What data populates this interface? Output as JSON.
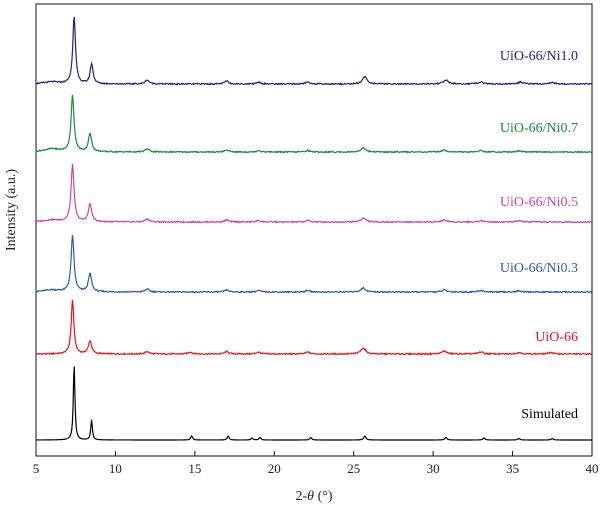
{
  "chart_data": {
    "type": "line",
    "xlabel_prefix": "2-",
    "xlabel_var": "θ",
    "xlabel_suffix": " (°)",
    "ylabel": "Intensity (a.u.)",
    "xlim": [
      5,
      40
    ],
    "xticks": [
      5,
      10,
      15,
      20,
      25,
      30,
      35,
      40
    ],
    "grid": false,
    "legend": "inline labels at right",
    "series": [
      {
        "name": "Simulated",
        "color": "#000000",
        "baseline": 0,
        "peaks": [
          [
            7.4,
            76,
            0.06
          ],
          [
            8.5,
            20,
            0.06
          ],
          [
            14.8,
            4,
            0.07
          ],
          [
            17.1,
            4,
            0.07
          ],
          [
            18.6,
            2,
            0.07
          ],
          [
            19.1,
            2.5,
            0.07
          ],
          [
            22.3,
            2.5,
            0.07
          ],
          [
            25.7,
            4,
            0.08
          ],
          [
            30.8,
            2.5,
            0.08
          ],
          [
            33.2,
            2,
            0.08
          ],
          [
            35.4,
            1.5,
            0.08
          ],
          [
            37.5,
            1.5,
            0.08
          ]
        ]
      },
      {
        "name": "UiO-66",
        "color": "#e8141c",
        "baseline": 86,
        "peaks": [
          [
            7.3,
            54,
            0.1
          ],
          [
            8.4,
            13,
            0.12
          ],
          [
            12.0,
            2.5,
            0.15
          ],
          [
            14.7,
            2,
            0.15
          ],
          [
            17.0,
            2.5,
            0.15
          ],
          [
            19.0,
            2,
            0.15
          ],
          [
            22.1,
            2,
            0.15
          ],
          [
            25.6,
            6,
            0.18
          ],
          [
            30.7,
            3,
            0.18
          ],
          [
            33.0,
            2,
            0.18
          ],
          [
            35.4,
            1.5,
            0.18
          ],
          [
            37.4,
            1.5,
            0.18
          ]
        ]
      },
      {
        "name": "UiO-66/Ni0.3",
        "color": "#2e5aa8",
        "baseline": 148,
        "peaks": [
          [
            6.0,
            2,
            0.6
          ],
          [
            7.3,
            56,
            0.11
          ],
          [
            8.4,
            18,
            0.12
          ],
          [
            12.0,
            3,
            0.15
          ],
          [
            17.0,
            2,
            0.15
          ],
          [
            19.0,
            1.5,
            0.15
          ],
          [
            22.1,
            1.5,
            0.15
          ],
          [
            25.6,
            4,
            0.18
          ],
          [
            30.7,
            2,
            0.18
          ],
          [
            33.0,
            1.5,
            0.18
          ],
          [
            35.4,
            1.2,
            0.18
          ]
        ]
      },
      {
        "name": "UiO-66/Ni0.5",
        "color": "#c846a8",
        "baseline": 218,
        "peaks": [
          [
            6.0,
            2,
            0.6
          ],
          [
            7.3,
            57,
            0.11
          ],
          [
            8.4,
            18,
            0.12
          ],
          [
            12.0,
            3,
            0.15
          ],
          [
            17.0,
            2,
            0.15
          ],
          [
            19.0,
            1.5,
            0.15
          ],
          [
            22.1,
            1.5,
            0.15
          ],
          [
            25.6,
            4,
            0.18
          ],
          [
            30.7,
            2,
            0.18
          ],
          [
            33.0,
            1.5,
            0.18
          ],
          [
            35.4,
            1.2,
            0.18
          ]
        ]
      },
      {
        "name": "UiO-66/Ni0.7",
        "color": "#1b8a3a",
        "baseline": 288,
        "peaks": [
          [
            6.0,
            3,
            0.6
          ],
          [
            7.3,
            56,
            0.11
          ],
          [
            8.4,
            18,
            0.12
          ],
          [
            12.0,
            3,
            0.15
          ],
          [
            17.0,
            2,
            0.15
          ],
          [
            19.0,
            1.5,
            0.15
          ],
          [
            22.1,
            1.5,
            0.15
          ],
          [
            25.6,
            4,
            0.18
          ],
          [
            30.7,
            2,
            0.18
          ],
          [
            33.0,
            1.5,
            0.18
          ],
          [
            35.4,
            1.2,
            0.18
          ]
        ]
      },
      {
        "name": "UiO-66/Ni1.0",
        "color": "#1f237a",
        "baseline": 356,
        "peaks": [
          [
            6.0,
            2,
            0.6
          ],
          [
            7.4,
            68,
            0.1
          ],
          [
            8.5,
            20,
            0.11
          ],
          [
            12.0,
            4,
            0.15
          ],
          [
            17.0,
            3,
            0.15
          ],
          [
            19.0,
            2,
            0.15
          ],
          [
            22.1,
            2,
            0.15
          ],
          [
            25.7,
            7,
            0.18
          ],
          [
            30.8,
            4,
            0.18
          ],
          [
            33.0,
            2,
            0.18
          ],
          [
            35.5,
            2,
            0.18
          ],
          [
            37.5,
            1.5,
            0.18
          ]
        ]
      }
    ]
  }
}
